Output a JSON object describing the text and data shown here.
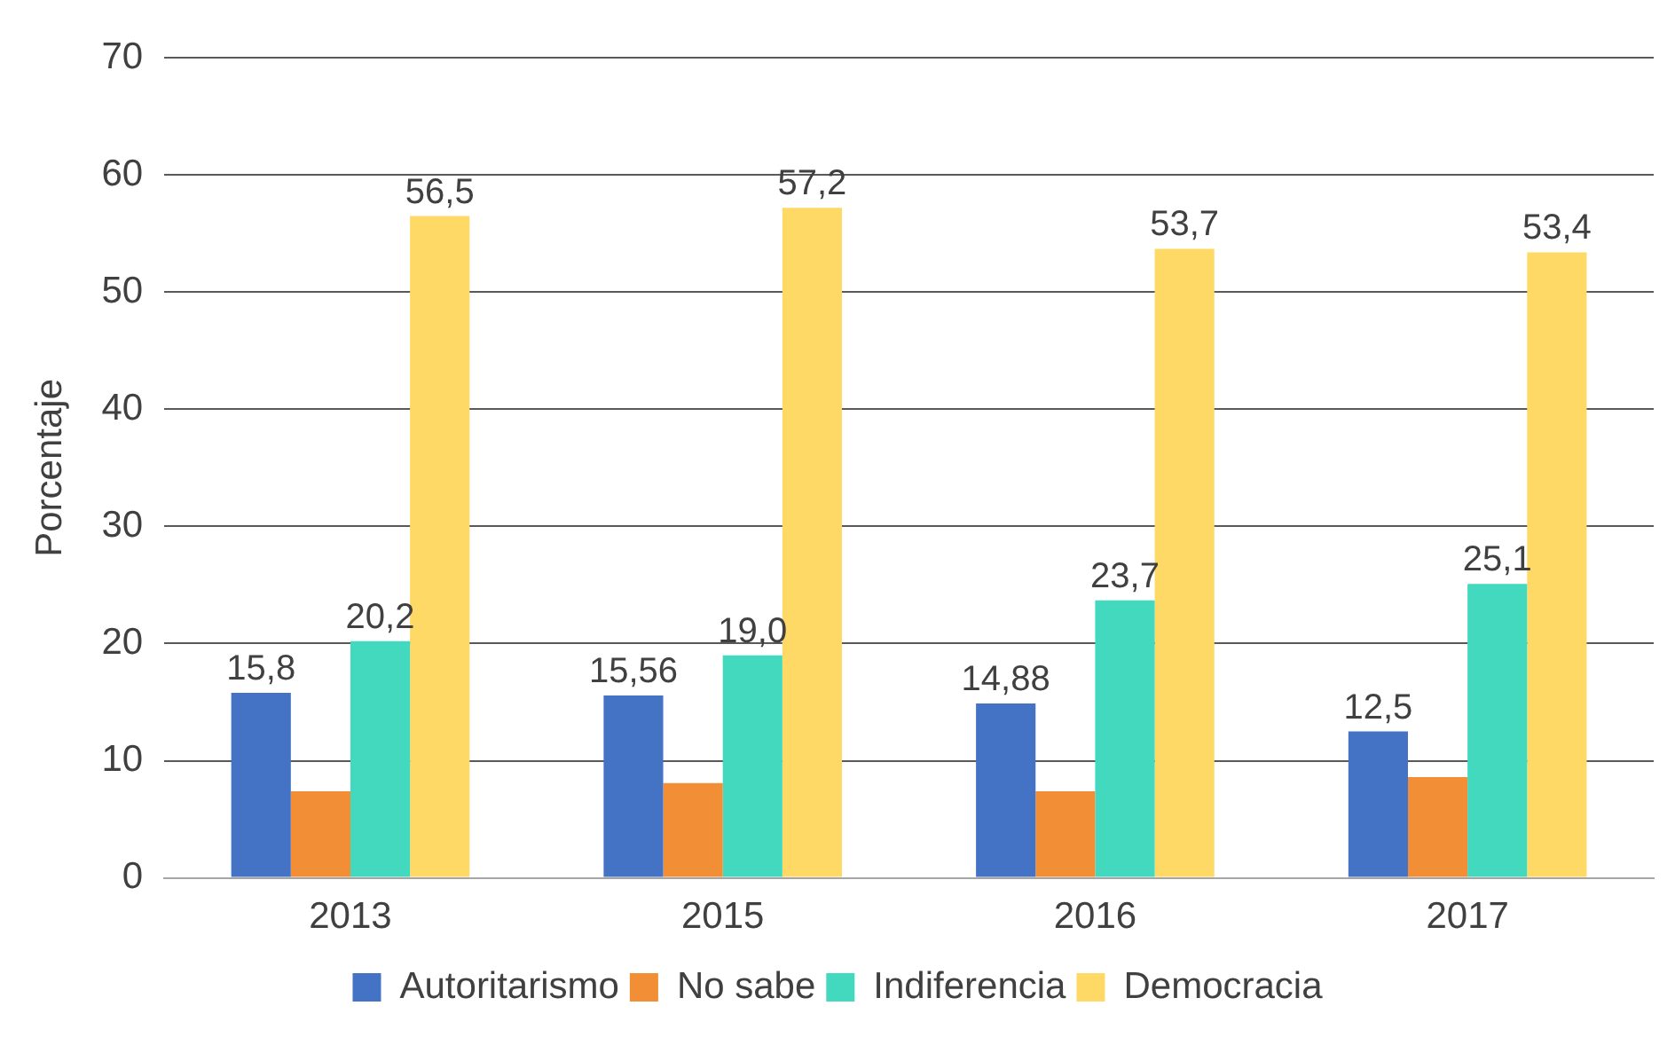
{
  "chart_data": {
    "type": "bar",
    "ylabel": "Porcentaje",
    "categories": [
      "2013",
      "2015",
      "2016",
      "2017"
    ],
    "series": [
      {
        "name": "Autoritarismo",
        "color": "#4472c4",
        "values": [
          15.8,
          15.56,
          14.88,
          12.5
        ],
        "value_labels": [
          "15,8",
          "15,56",
          "14,88",
          "12,5"
        ]
      },
      {
        "name": "No sabe",
        "color": "#f28e35",
        "values": [
          7.4,
          8.1,
          7.4,
          8.6
        ],
        "value_labels": [
          null,
          null,
          null,
          null
        ]
      },
      {
        "name": "Indiferencia",
        "color": "#42d9bf",
        "values": [
          20.2,
          19.0,
          23.7,
          25.1
        ],
        "value_labels": [
          "20,2",
          "19,0",
          "23,7",
          "25,1"
        ]
      },
      {
        "name": "Democracia",
        "color": "#ffd966",
        "values": [
          56.5,
          57.2,
          53.7,
          53.4
        ],
        "value_labels": [
          "56,5",
          "57,2",
          "53,7",
          "53,4"
        ]
      }
    ],
    "ylim": [
      0,
      70
    ],
    "yticks": [
      0,
      10,
      20,
      30,
      40,
      50,
      60,
      70
    ],
    "grid": "y",
    "legend": "bottom"
  }
}
